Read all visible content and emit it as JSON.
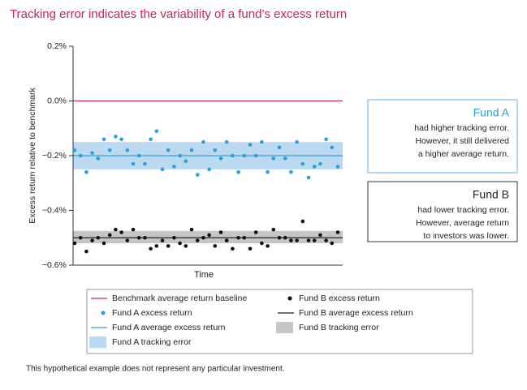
{
  "chart_data": {
    "type": "scatter",
    "title": "Tracking error indicates the variability of a fund’s excess return",
    "xlabel": "Time",
    "ylabel": "Excess return relative to benchmark",
    "ylim": [
      -0.6,
      0.2
    ],
    "yticks": [
      {
        "value": 0.2,
        "label": "0.2%"
      },
      {
        "value": 0,
        "label": "0.0%"
      },
      {
        "value": -0.2,
        "label": "−0.2%"
      },
      {
        "value": -0.4,
        "label": "−0.4%"
      },
      {
        "value": -0.6,
        "label": "−0.6%"
      }
    ],
    "series": [
      {
        "name": "Fund A excess return",
        "color": "#2a9fd8",
        "values": [
          -0.18,
          -0.2,
          -0.26,
          -0.19,
          -0.21,
          -0.14,
          -0.18,
          -0.13,
          -0.14,
          -0.18,
          -0.23,
          -0.2,
          -0.23,
          -0.14,
          -0.11,
          -0.25,
          -0.18,
          -0.24,
          -0.2,
          -0.22,
          -0.18,
          -0.27,
          -0.15,
          -0.25,
          -0.18,
          -0.21,
          -0.15,
          -0.2,
          -0.26,
          -0.2,
          -0.16,
          -0.2,
          -0.15,
          -0.26,
          -0.21,
          -0.17,
          -0.21,
          -0.26,
          -0.15,
          -0.23,
          -0.28,
          -0.24,
          -0.23,
          -0.14,
          -0.17,
          -0.24
        ]
      },
      {
        "name": "Fund B excess return",
        "color": "#111111",
        "values": [
          -0.52,
          -0.5,
          -0.55,
          -0.51,
          -0.5,
          -0.52,
          -0.49,
          -0.47,
          -0.48,
          -0.51,
          -0.47,
          -0.5,
          -0.5,
          -0.54,
          -0.53,
          -0.51,
          -0.53,
          -0.5,
          -0.52,
          -0.53,
          -0.47,
          -0.51,
          -0.5,
          -0.49,
          -0.53,
          -0.48,
          -0.51,
          -0.54,
          -0.5,
          -0.5,
          -0.54,
          -0.48,
          -0.52,
          -0.53,
          -0.47,
          -0.5,
          -0.5,
          -0.51,
          -0.51,
          -0.44,
          -0.51,
          -0.51,
          -0.49,
          -0.51,
          -0.52,
          -0.48
        ]
      }
    ],
    "reference_lines": [
      {
        "name": "Benchmark average return baseline",
        "color": "#c4285c",
        "value": 0
      },
      {
        "name": "Fund A average excess return",
        "color": "#3aa0d8",
        "value": -0.2
      },
      {
        "name": "Fund B average excess return",
        "color": "#222222",
        "value": -0.5
      }
    ],
    "bands": [
      {
        "name": "Fund A tracking error",
        "color": "#bcd9f2",
        "range": [
          -0.25,
          -0.15
        ]
      },
      {
        "name": "Fund B tracking error",
        "color": "#c6c6c6",
        "range": [
          -0.52,
          -0.475
        ]
      }
    ],
    "annotations": [
      {
        "title": "Fund A",
        "lines": [
          "had higher tracking error.",
          "However, it still delivered",
          "a higher average return."
        ]
      },
      {
        "title": "Fund B",
        "lines": [
          "had lower tracking error.",
          "However, average return",
          "to investors was lower."
        ]
      }
    ],
    "footnote": "This hypothetical example does not represent any particular investment."
  }
}
